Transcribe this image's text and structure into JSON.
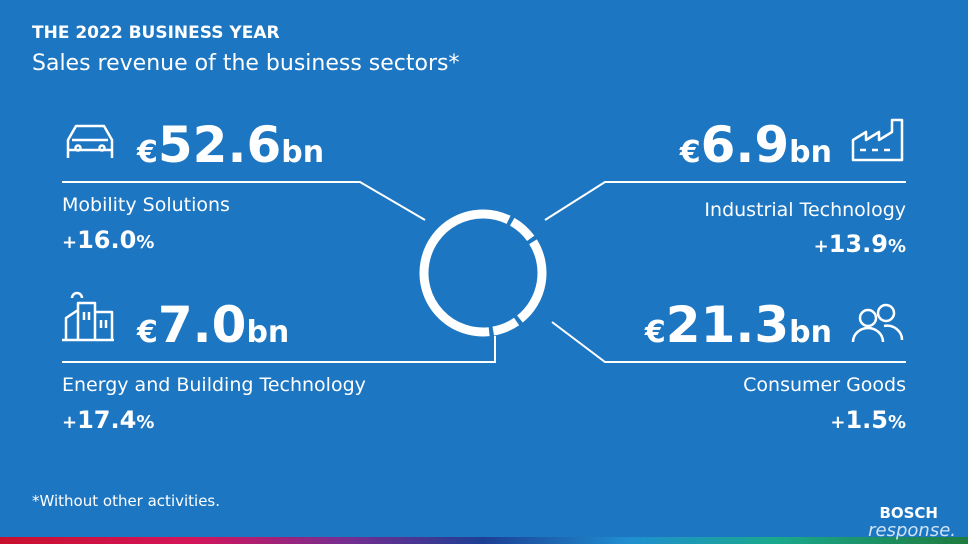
{
  "chart_data": {
    "type": "donut",
    "title": "THE 2022 BUSINESS YEAR",
    "subtitle": "Sales revenue of the business sectors*",
    "categories": [
      "Mobility Solutions",
      "Industrial Technology",
      "Consumer Goods",
      "Energy and Building Technology"
    ],
    "values": [
      52.6,
      6.9,
      21.3,
      7.0
    ],
    "value_labels": [
      "€52.6bn",
      "€6.9bn",
      "€21.3bn",
      "€7.0bn"
    ],
    "growth": [
      "+16.0%",
      "+13.9%",
      "+1.5%",
      "+17.4%"
    ],
    "color": "#ffffff",
    "footnote": "*Without other activities.",
    "brand": "BOSCH",
    "watermark": "response."
  }
}
